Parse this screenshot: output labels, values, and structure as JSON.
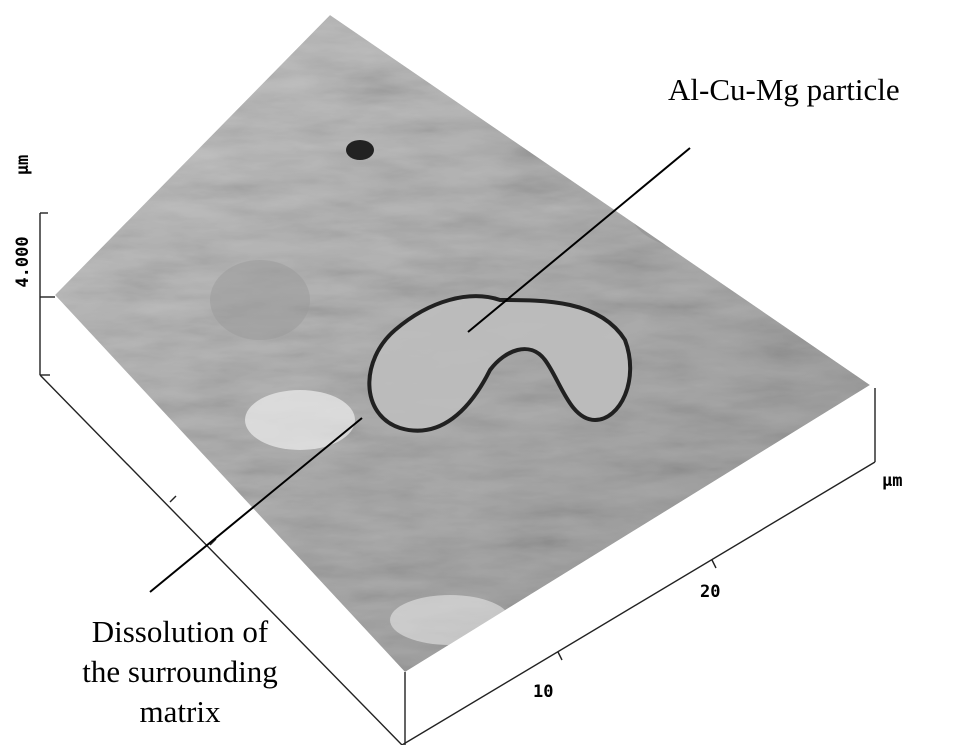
{
  "annotations": {
    "particle": "Al-Cu-Mg particle",
    "matrix": [
      "Dissolution of",
      "the surrounding",
      "matrix"
    ]
  },
  "axes": {
    "z": {
      "tick": "4.000",
      "unit": "µm"
    },
    "xy": {
      "ticks": [
        "10",
        "20"
      ],
      "unit": "µm"
    }
  }
}
